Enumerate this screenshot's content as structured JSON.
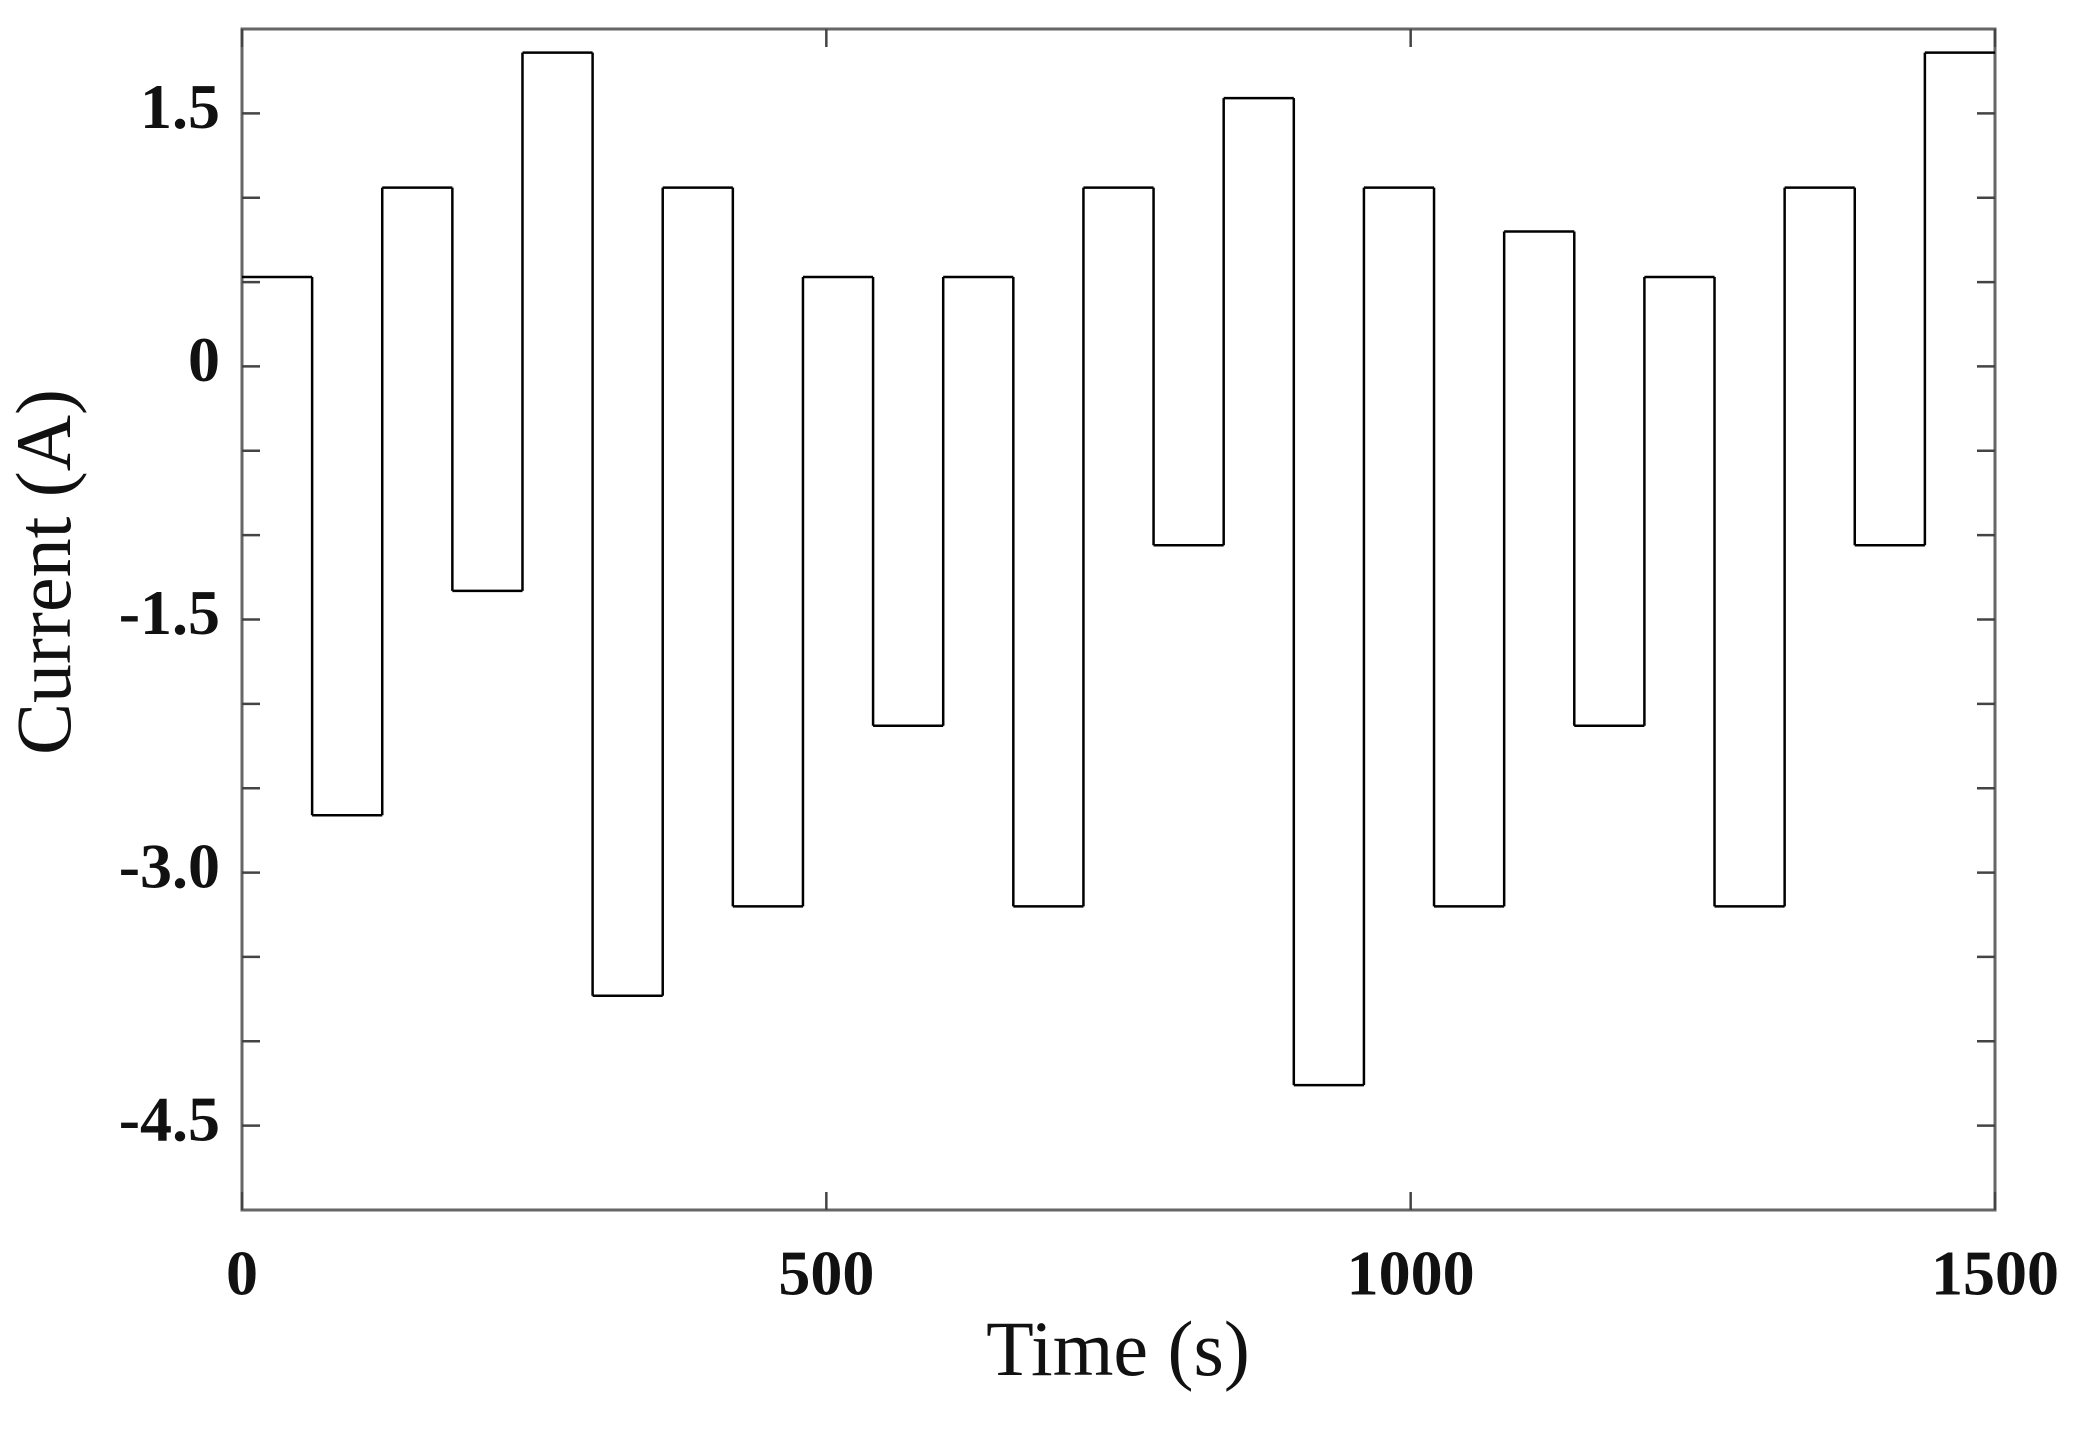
{
  "chart_data": {
    "type": "step",
    "x_label": "Time (s)",
    "y_label": "Current (A)",
    "x": [
      0,
      60,
      120,
      180,
      240,
      300,
      360,
      420,
      480,
      540,
      600,
      660,
      720,
      780,
      840,
      900,
      960,
      1020,
      1080,
      1140,
      1200,
      1260,
      1320,
      1380,
      1440
    ],
    "values": [
      0.53,
      -2.66,
      1.06,
      -1.33,
      1.86,
      -3.73,
      1.06,
      -3.2,
      0.53,
      -2.13,
      0.53,
      -3.2,
      1.06,
      -1.06,
      1.59,
      -4.26,
      1.06,
      -3.2,
      0.8,
      -2.13,
      0.53,
      -3.2,
      1.06,
      -1.06,
      1.86
    ],
    "color": "#000000",
    "xlim": [
      0,
      1500
    ],
    "xticks": [
      0,
      500,
      1000,
      1500
    ],
    "ylim": [
      -5,
      2
    ],
    "yticks": [
      -4.5,
      {
        "value": -3,
        "label": "-3.0"
      },
      -1.5,
      0,
      1.5
    ],
    "yminor": [
      -4,
      -3.5,
      -2.5,
      -2,
      -1,
      -0.5,
      0.5,
      1
    ]
  }
}
